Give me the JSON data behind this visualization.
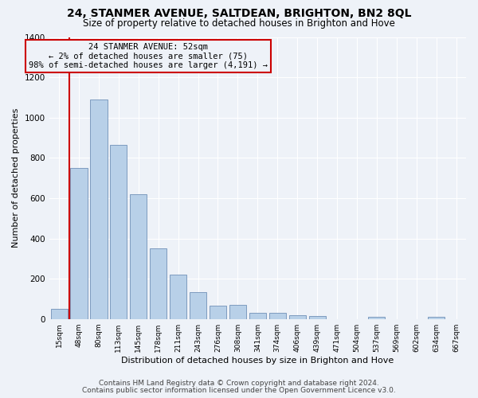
{
  "title1": "24, STANMER AVENUE, SALTDEAN, BRIGHTON, BN2 8QL",
  "title2": "Size of property relative to detached houses in Brighton and Hove",
  "xlabel": "Distribution of detached houses by size in Brighton and Hove",
  "ylabel": "Number of detached properties",
  "footer1": "Contains HM Land Registry data © Crown copyright and database right 2024.",
  "footer2": "Contains public sector information licensed under the Open Government Licence v3.0.",
  "bar_labels": [
    "15sqm",
    "48sqm",
    "80sqm",
    "113sqm",
    "145sqm",
    "178sqm",
    "211sqm",
    "243sqm",
    "276sqm",
    "308sqm",
    "341sqm",
    "374sqm",
    "406sqm",
    "439sqm",
    "471sqm",
    "504sqm",
    "537sqm",
    "569sqm",
    "602sqm",
    "634sqm",
    "667sqm"
  ],
  "bar_values": [
    50,
    750,
    1090,
    865,
    620,
    350,
    220,
    135,
    65,
    70,
    30,
    30,
    20,
    15,
    0,
    0,
    10,
    0,
    0,
    10,
    0
  ],
  "bar_color": "#b8d0e8",
  "bar_edge_color": "#7090b8",
  "property_label": "24 STANMER AVENUE: 52sqm",
  "smaller_pct": 2,
  "smaller_count": 75,
  "larger_pct": 98,
  "larger_count": 4191,
  "vline_pos": 0.5,
  "ann_box_edge_color": "#cc0000",
  "ylim": [
    0,
    1400
  ],
  "yticks": [
    0,
    200,
    400,
    600,
    800,
    1000,
    1200,
    1400
  ],
  "background_color": "#eef2f8",
  "grid_color": "#d8e0ec",
  "title1_fontsize": 10,
  "title2_fontsize": 8.5,
  "xlabel_fontsize": 8,
  "ylabel_fontsize": 8,
  "tick_fontsize": 7.5,
  "xtick_fontsize": 6.5,
  "footer_fontsize": 6.5,
  "ann_fontsize": 7.5
}
